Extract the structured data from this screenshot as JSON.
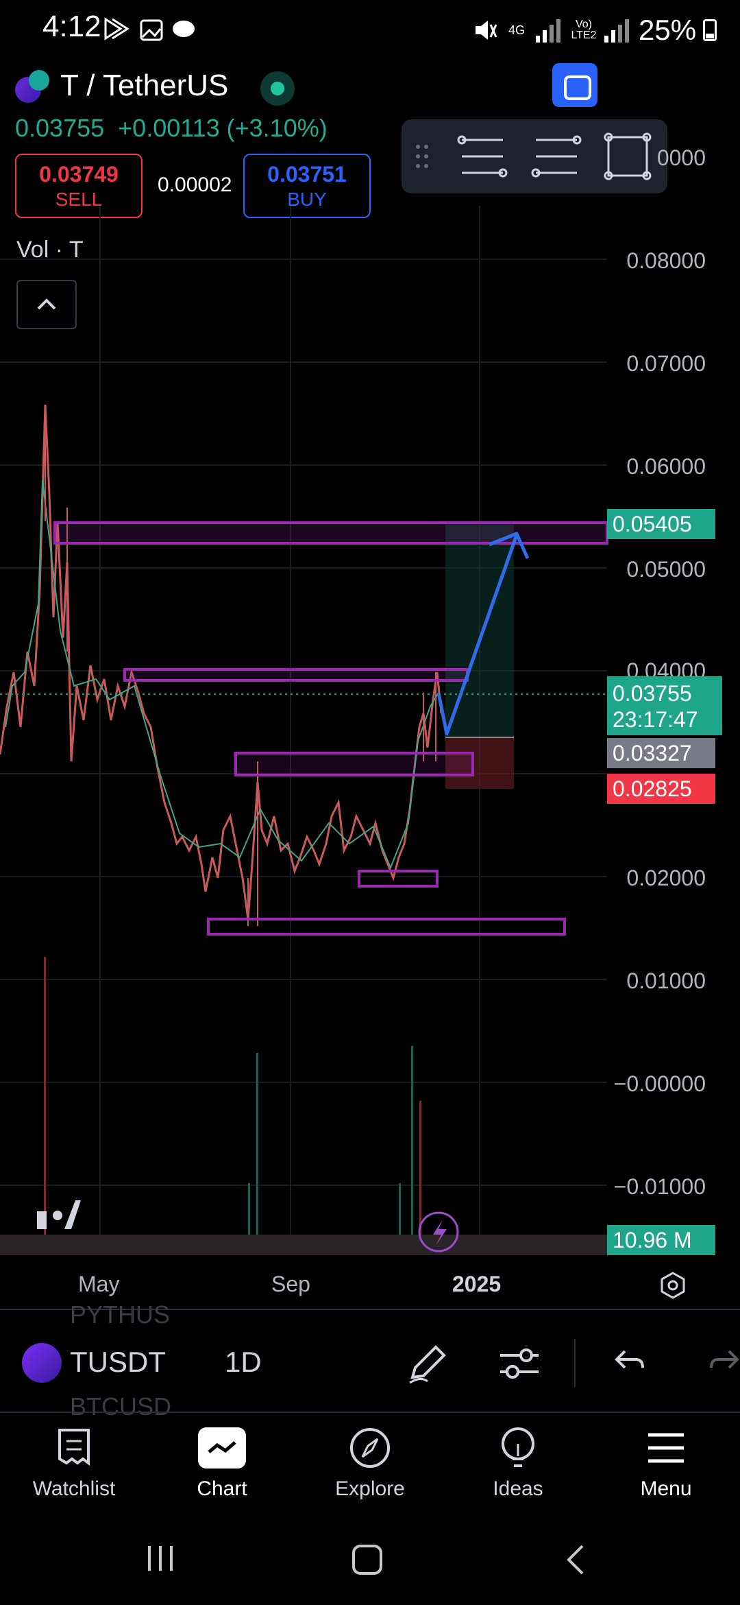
{
  "status_bar": {
    "time": "4:12",
    "network_top": "4G",
    "network_bottom": "Vo) LTE2",
    "battery": "25%"
  },
  "header": {
    "symbol_title": "T / TetherUS",
    "last_price": "0.03755",
    "change": "+0.00113 (+3.10%)",
    "sell_price": "0.03749",
    "sell_label": "SELL",
    "spread": "0.00002",
    "buy_price": "0.03751",
    "buy_label": "BUY",
    "volume_label": "Vol · T"
  },
  "price_axis": {
    "top_partial": "0000",
    "labels": [
      "0.08000",
      "0.07000",
      "0.06000",
      "0.05000",
      "0.04000",
      "0.02000",
      "0.01000",
      "−0.00000",
      "−0.01000"
    ]
  },
  "price_tags": {
    "target": "0.05405",
    "last": "0.03755",
    "countdown": "23:17:47",
    "entry": "0.03327",
    "stop": "0.02825",
    "volume": "10.96 M"
  },
  "time_axis": {
    "labels": [
      "May",
      "Sep",
      "2025"
    ]
  },
  "symbol_bar": {
    "ghost_above": "PYTHUS",
    "symbol": "TUSDT",
    "timeframe": "1D",
    "ghost_below": "BTCUSD"
  },
  "bottom_nav": [
    {
      "label": "Watchlist",
      "icon": "watchlist-icon"
    },
    {
      "label": "Chart",
      "icon": "chart-icon"
    },
    {
      "label": "Explore",
      "icon": "compass-icon"
    },
    {
      "label": "Ideas",
      "icon": "lightbulb-icon"
    },
    {
      "label": "Menu",
      "icon": "hamburger-icon"
    }
  ],
  "colors": {
    "up": "#22ab94",
    "down": "#f23645",
    "accent": "#2962ff",
    "zone": "#9c27b0"
  }
}
